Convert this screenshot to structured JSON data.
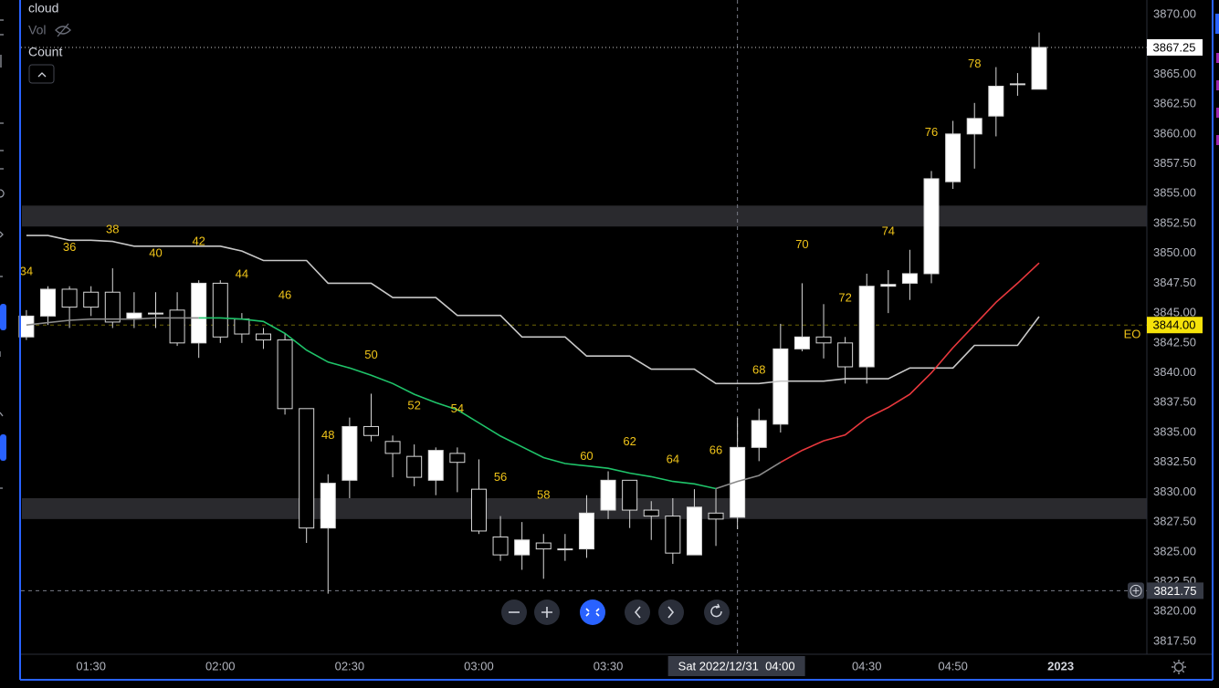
{
  "chart_data": {
    "type": "candlestick",
    "legend_items": [
      "cloud",
      "Vol",
      "Count"
    ],
    "open": [
      3843,
      3844.75,
      3847,
      3846.75,
      3846.75,
      3844.5,
      3845,
      3845.25,
      3842.5,
      3847.5,
      3844.5,
      3843.25,
      3842.75,
      3837,
      3827,
      3831,
      3835.5,
      3834.25,
      3833,
      3831,
      3833.25,
      3830.25,
      3826.25,
      3824.75,
      3825.75,
      3825.25,
      3825.25,
      3828.5,
      3831,
      3828.5,
      3828,
      3824.75,
      3828.25,
      3827.9,
      3833.75,
      3835.7,
      3842,
      3843,
      3842.5,
      3840.5,
      3847.25,
      3847.5,
      3848.3,
      3856,
      3860,
      3861.5,
      3864.2,
      3863.75
    ],
    "high": [
      3845.25,
      3847.25,
      3847.25,
      3847.25,
      3848.75,
      3846.75,
      3846.75,
      3846.75,
      3847.75,
      3847.75,
      3845,
      3843.75,
      3843.25,
      3837,
      3831.5,
      3836.25,
      3838.25,
      3834.75,
      3834,
      3833.75,
      3833.75,
      3832.75,
      3828,
      3827.5,
      3826.5,
      3826.5,
      3829.75,
      3831.75,
      3831,
      3829.25,
      3829.5,
      3830.25,
      3830.25,
      3836.25,
      3837,
      3844.1,
      3847.5,
      3845.75,
      3843,
      3848.3,
      3848.6,
      3850.3,
      3856.9,
      3861.1,
      3862.6,
      3865.6,
      3865.1,
      3868.5
    ],
    "low": [
      3842.75,
      3844,
      3843.75,
      3844.75,
      3843.75,
      3843.75,
      3843.75,
      3842.25,
      3841.25,
      3842.5,
      3842.5,
      3842,
      3836.5,
      3825.75,
      3821.5,
      3829.5,
      3834.25,
      3831.25,
      3830.5,
      3829.75,
      3830,
      3826.5,
      3824.25,
      3823.5,
      3822.75,
      3824.25,
      3824.5,
      3827.75,
      3827,
      3826,
      3824,
      3824.75,
      3825.5,
      3826.9,
      3832.6,
      3835,
      3841.8,
      3841.2,
      3839.1,
      3839.1,
      3845,
      3846.1,
      3847.5,
      3855.4,
      3857.1,
      3859.8,
      3863.2,
      3863.75
    ],
    "close": [
      3844.75,
      3847,
      3845.5,
      3845.5,
      3844.25,
      3845,
      3845,
      3842.5,
      3847.5,
      3843,
      3843.25,
      3842.75,
      3837,
      3827,
      3830.75,
      3835.5,
      3834.75,
      3833.25,
      3831.25,
      3833.5,
      3832.5,
      3826.75,
      3824.75,
      3826,
      3825.25,
      3825.25,
      3828.25,
      3831,
      3828.5,
      3828,
      3824.9,
      3828.75,
      3827.75,
      3833.75,
      3836,
      3842,
      3843,
      3842.5,
      3840.5,
      3847.25,
      3847.4,
      3848.3,
      3856.25,
      3860,
      3861.3,
      3864,
      3864.2,
      3867.25
    ],
    "up_color": "#ffffff",
    "down_color": "#000000",
    "count_labels": [
      34,
      36,
      38,
      40,
      42,
      44,
      46,
      48,
      50,
      52,
      54,
      56,
      58,
      60,
      62,
      64,
      66,
      68,
      70,
      72,
      74,
      76,
      78
    ],
    "count_color": "#f0c419",
    "overlays": [
      {
        "color": "#c8c8c8",
        "values": [
          3851.5,
          3851.5,
          3851.1,
          3851.1,
          3851,
          3850.6,
          3850.6,
          3850.6,
          3850.6,
          3850.6,
          3850.2,
          3849.4,
          3849.4,
          3849.4,
          3847.5,
          3847.5,
          3847.5,
          3846.3,
          3846.3,
          3846.3,
          3844.8,
          3844.8,
          3844.8,
          3843,
          3843,
          3843,
          3841.4,
          3841.4,
          3841.4,
          3840.3,
          3840.3,
          3840.3,
          3839.1,
          3839.1,
          3839.1,
          3839.3,
          3839.3,
          3839.3,
          3839.5,
          3839.5,
          3839.5,
          3840.4,
          3840.4,
          3840.4,
          3842.3,
          3842.3,
          3842.3,
          3844.7
        ]
      },
      {
        "color": "#8a8a8a",
        "values": [
          3844,
          3844.2,
          3844.4,
          3844.5,
          3844.5,
          3844.5,
          3844.6,
          3844.6,
          3844.6,
          null,
          null,
          null,
          null,
          null,
          null,
          null,
          null,
          null,
          null,
          null,
          null,
          null,
          null,
          null,
          null,
          null,
          null,
          null,
          null,
          null,
          null,
          null,
          3830.3,
          3830.9,
          3831.4,
          3832.5,
          null,
          null,
          null,
          null,
          null,
          null,
          null,
          null,
          null,
          null,
          null,
          null
        ]
      },
      {
        "color": "#1fc46a",
        "values": [
          null,
          null,
          null,
          null,
          null,
          null,
          null,
          null,
          3844.6,
          3844.6,
          3844.5,
          3844.3,
          3843.3,
          3841.9,
          3840.9,
          3840.4,
          3839.8,
          3839.1,
          3838.2,
          3837.5,
          3836.9,
          3835.8,
          3834.7,
          3833.8,
          3832.9,
          3832.4,
          3832.2,
          3832,
          3831.6,
          3831.3,
          3830.9,
          3830.7,
          3830.3,
          null,
          null,
          null,
          null,
          null,
          null,
          null,
          null,
          null,
          null,
          null,
          null,
          null,
          null,
          null
        ]
      },
      {
        "color": "#e8383d",
        "values": [
          null,
          null,
          null,
          null,
          null,
          null,
          null,
          null,
          null,
          null,
          null,
          null,
          null,
          null,
          null,
          null,
          null,
          null,
          null,
          null,
          null,
          null,
          null,
          null,
          null,
          null,
          null,
          null,
          null,
          null,
          null,
          null,
          null,
          null,
          null,
          3832.5,
          3833.5,
          3834.3,
          3834.8,
          3836.2,
          3837.1,
          3838.2,
          3840,
          3842.1,
          3844,
          3845.9,
          3847.5,
          3849.2
        ]
      }
    ],
    "zones": [
      {
        "from": 3852.25,
        "to": 3854
      },
      {
        "from": 3827.75,
        "to": 3829.5
      }
    ],
    "price_lines": [
      {
        "value": 3867.25,
        "label": "3867.25",
        "color": "#ffffff"
      },
      {
        "value": 3844,
        "label": "3844.00",
        "color": "#f5e20a"
      }
    ],
    "annotation": "EO",
    "crosshair": {
      "x": 33,
      "x_label": "Sat 2022/12/31  04:00",
      "y": 3821.75,
      "y_label": "3821.75"
    },
    "xlim": [
      -0.25,
      52
    ],
    "xticks": [
      {
        "value": 3,
        "label": "01:30"
      },
      {
        "value": 9,
        "label": "02:00"
      },
      {
        "value": 15,
        "label": "02:30"
      },
      {
        "value": 21,
        "label": "03:00"
      },
      {
        "value": 27,
        "label": "03:30"
      },
      {
        "value": 39,
        "label": "04:30"
      },
      {
        "value": 43,
        "label": "04:50"
      },
      {
        "value": 48,
        "label": "2023"
      }
    ],
    "ylim": [
      3816.43,
      3871.22
    ],
    "yticks": [
      {
        "value": 3817.5,
        "label": "3817.50"
      },
      {
        "value": 3820,
        "label": "3820.00"
      },
      {
        "value": 3822.5,
        "label": "3822.50"
      },
      {
        "value": 3825,
        "label": "3825.00"
      },
      {
        "value": 3827.5,
        "label": "3827.50"
      },
      {
        "value": 3830,
        "label": "3830.00"
      },
      {
        "value": 3832.5,
        "label": "3832.50"
      },
      {
        "value": 3835,
        "label": "3835.00"
      },
      {
        "value": 3837.5,
        "label": "3837.50"
      },
      {
        "value": 3840,
        "label": "3840.00"
      },
      {
        "value": 3842.5,
        "label": "3842.50"
      },
      {
        "value": 3845,
        "label": "3845.00"
      },
      {
        "value": 3847.5,
        "label": "3847.50"
      },
      {
        "value": 3850,
        "label": "3850.00"
      },
      {
        "value": 3852.5,
        "label": "3852.50"
      },
      {
        "value": 3855,
        "label": "3855.00"
      },
      {
        "value": 3857.5,
        "label": "3857.50"
      },
      {
        "value": 3860,
        "label": "3860.00"
      },
      {
        "value": 3862.5,
        "label": "3862.50"
      },
      {
        "value": 3865,
        "label": "3865.00"
      },
      {
        "value": 3867.5,
        "label": "3867.50"
      },
      {
        "value": 3870,
        "label": "3870.00"
      }
    ],
    "grid": false
  }
}
